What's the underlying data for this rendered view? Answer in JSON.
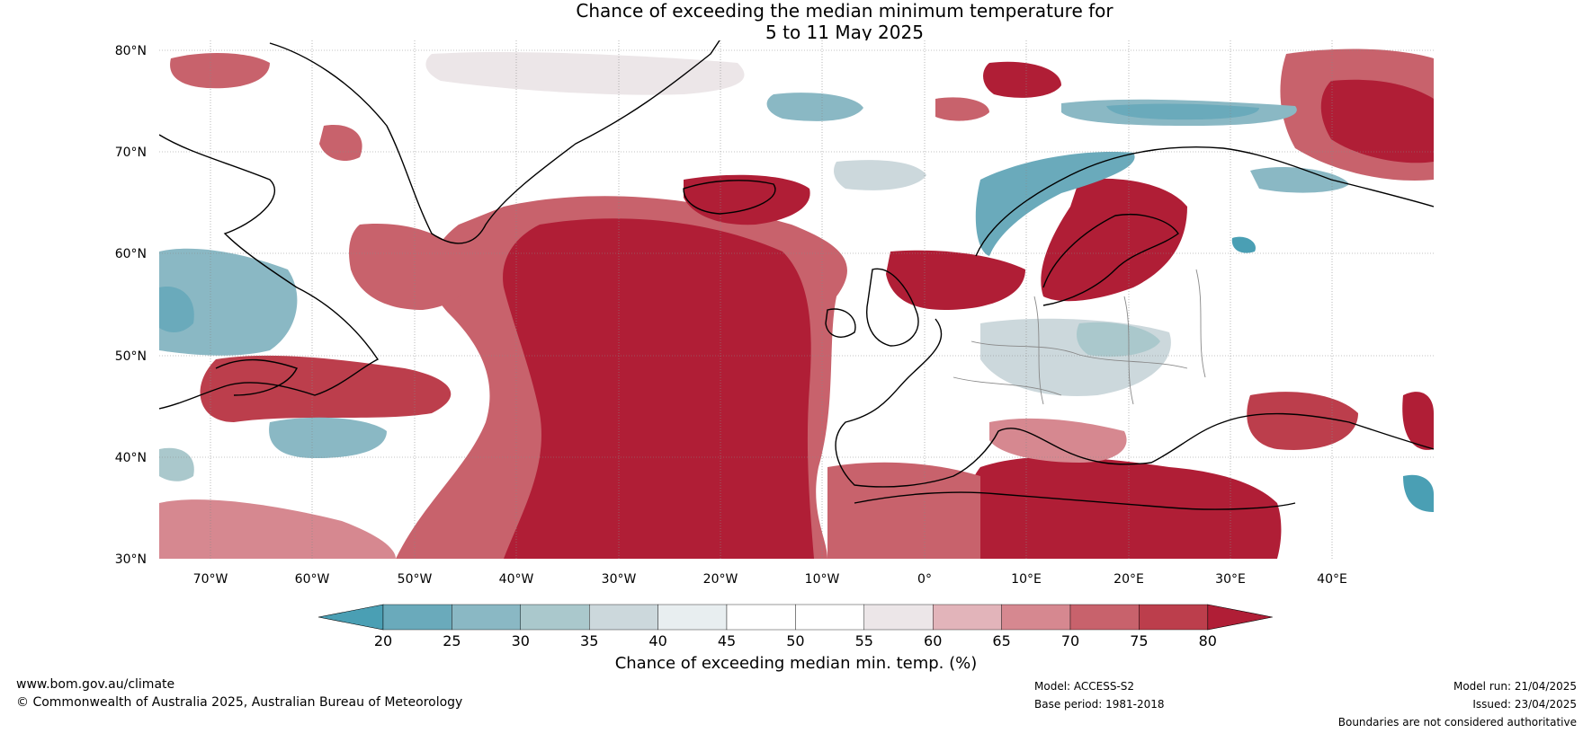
{
  "title": {
    "line1": "Chance of exceeding the median minimum temperature for",
    "line2": "5 to 11 May 2025"
  },
  "map": {
    "lat_labels": [
      "80°N",
      "70°N",
      "60°N",
      "50°N",
      "40°N",
      "30°N"
    ],
    "lon_labels": [
      "70°W",
      "60°W",
      "50°W",
      "40°W",
      "30°W",
      "20°W",
      "10°W",
      "0°",
      "10°E",
      "20°E",
      "30°E",
      "40°E"
    ],
    "lat_range": [
      30,
      80
    ],
    "lon_range": [
      -75,
      50
    ]
  },
  "colorbar": {
    "ticks": [
      "20",
      "25",
      "30",
      "35",
      "40",
      "45",
      "50",
      "55",
      "60",
      "65",
      "70",
      "75",
      "80"
    ],
    "colors": [
      "#4a9fb4",
      "#6aaabb",
      "#8ab8c4",
      "#aac8cc",
      "#ccd8dc",
      "#e8eef0",
      "#ffffff",
      "#ffffff",
      "#ece6e8",
      "#e2b4ba",
      "#d68890",
      "#c8626c",
      "#bc3e4c",
      "#b01e36"
    ],
    "label": "Chance of exceeding median min. temp. (%)"
  },
  "footer": {
    "website": "www.bom.gov.au/climate",
    "copyright": "© Commonwealth of Australia 2025, Australian Bureau of Meteorology",
    "model": "Model: ACCESS-S2",
    "base_period": "Base period: 1981-2018",
    "model_run": "Model run: 21/04/2025",
    "issued": "Issued: 23/04/2025",
    "disclaimer": "Boundaries are not considered authoritative"
  }
}
